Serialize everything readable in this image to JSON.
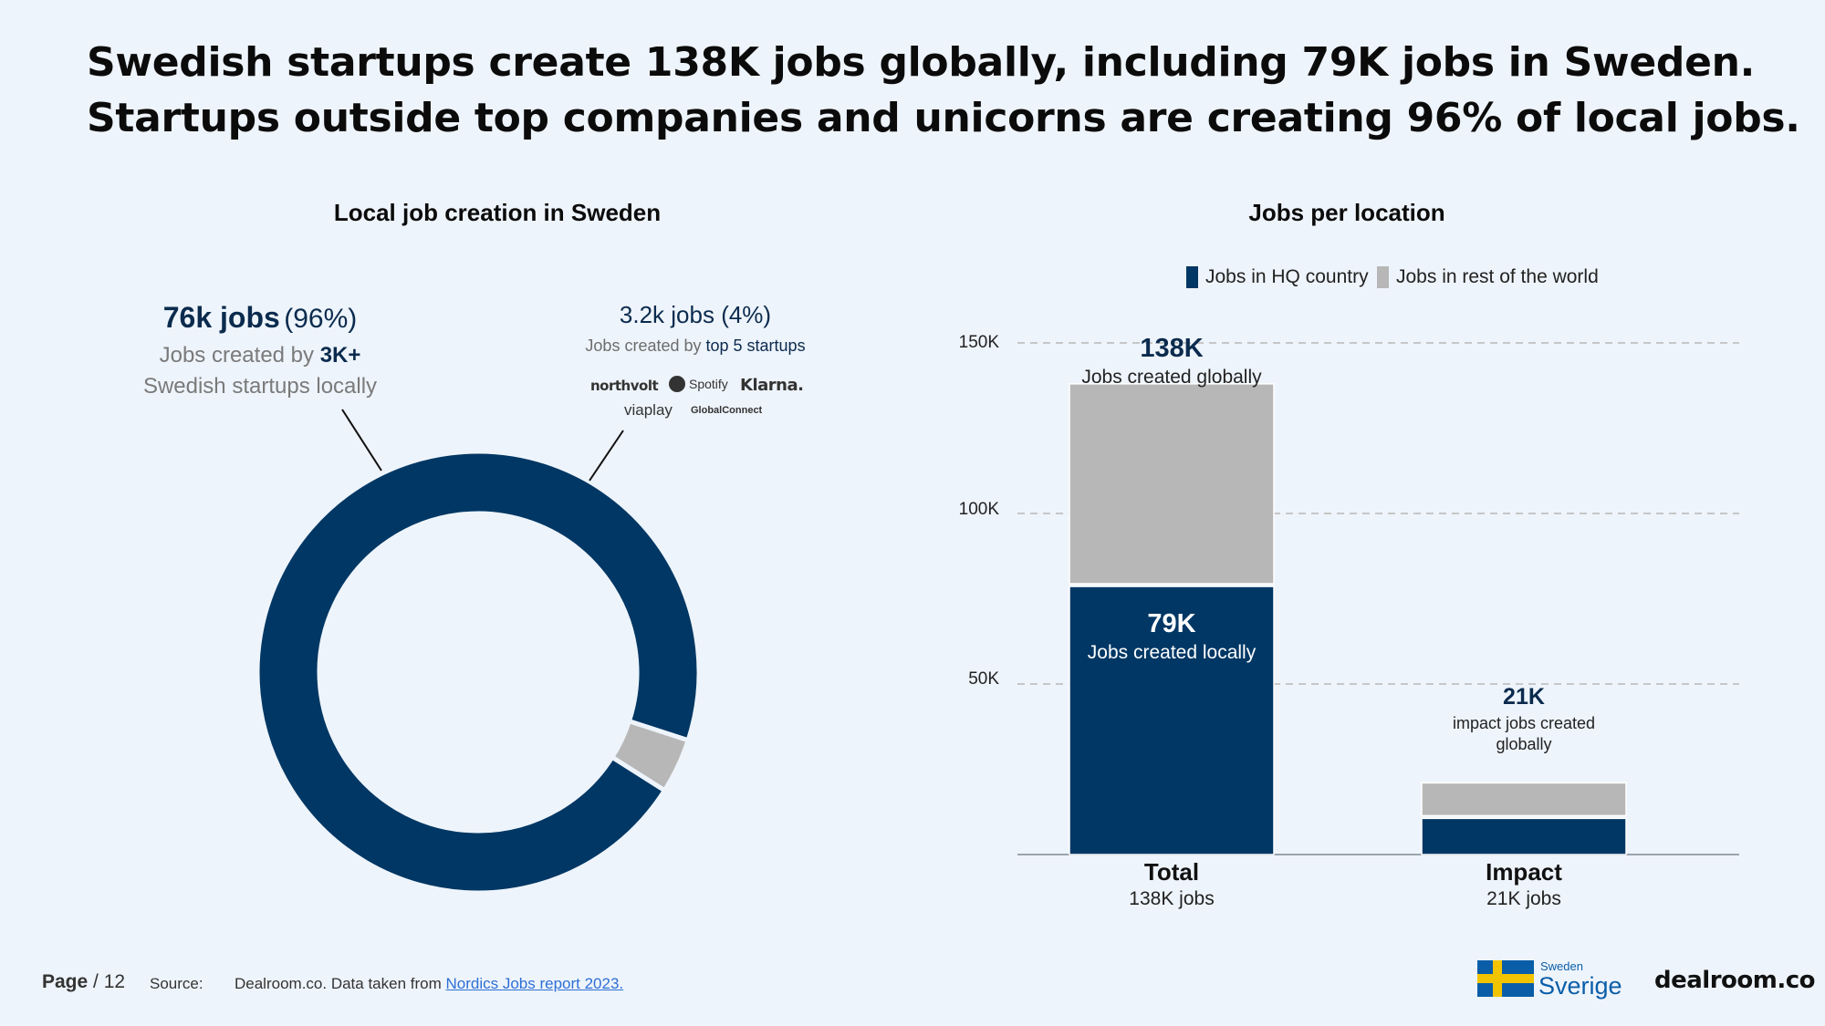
{
  "headline": {
    "line1": "Swedish startups create 138K jobs globally, including 79K jobs in Sweden.",
    "line2": "Startups outside top companies and unicorns are creating 96% of local jobs."
  },
  "colors": {
    "navy": "#003764",
    "grey": "#b7b7b7",
    "background": "#eef4fb",
    "grid": "#b8b8b8"
  },
  "donut": {
    "title": "Local job creation in Sweden",
    "main_value": "76k jobs",
    "main_pct": "(96%)",
    "main_desc_prefix": "Jobs created by ",
    "main_desc_bold": "3K+",
    "main_desc_line2": "Swedish startups locally",
    "top_value": "3.2k jobs (4%)",
    "top_desc_prefix": "Jobs created by ",
    "top_desc_em": "top 5 startups",
    "logos": [
      "northvolt",
      "Spotify",
      "Klarna.",
      "viaplay",
      "GlobalConnect"
    ]
  },
  "chart_data": [
    {
      "type": "pie",
      "title": "Local job creation in Sweden",
      "labels": [
        "Jobs created by 3K+ Swedish startups locally",
        "Jobs created by top 5 startups"
      ],
      "values": [
        96,
        4
      ],
      "units": "%",
      "style": "donut"
    },
    {
      "type": "bar",
      "stacked": true,
      "title": "Jobs per location",
      "categories": [
        "Total",
        "Impact"
      ],
      "category_sublabels": [
        "138K jobs",
        "21K jobs"
      ],
      "series": [
        {
          "name": "Jobs in HQ country",
          "values": [
            79,
            11
          ]
        },
        {
          "name": "Jobs in rest of the world",
          "values": [
            59,
            10
          ]
        }
      ],
      "yticks": [
        "50K",
        "100K",
        "150K"
      ],
      "ytick_values": [
        50,
        100,
        150
      ],
      "ylim": [
        0,
        150
      ],
      "grid": true,
      "legend": "top",
      "annotations": {
        "total": {
          "value": "138K",
          "text": "Jobs created globally"
        },
        "local": {
          "value": "79K",
          "text": "Jobs created locally"
        },
        "impact": {
          "value": "21K",
          "text_line1": "impact jobs created",
          "text_line2": "globally"
        }
      }
    }
  ],
  "footer": {
    "page_label": "Page",
    "page_number": "/ 12",
    "source_label": "Source:",
    "source_text": "Dealroom.co. Data taken from ",
    "source_link": "Nordics Jobs report 2023.",
    "sweden_small": "Sweden",
    "sweden_big": "Sverige",
    "brand": "dealroom.co"
  }
}
